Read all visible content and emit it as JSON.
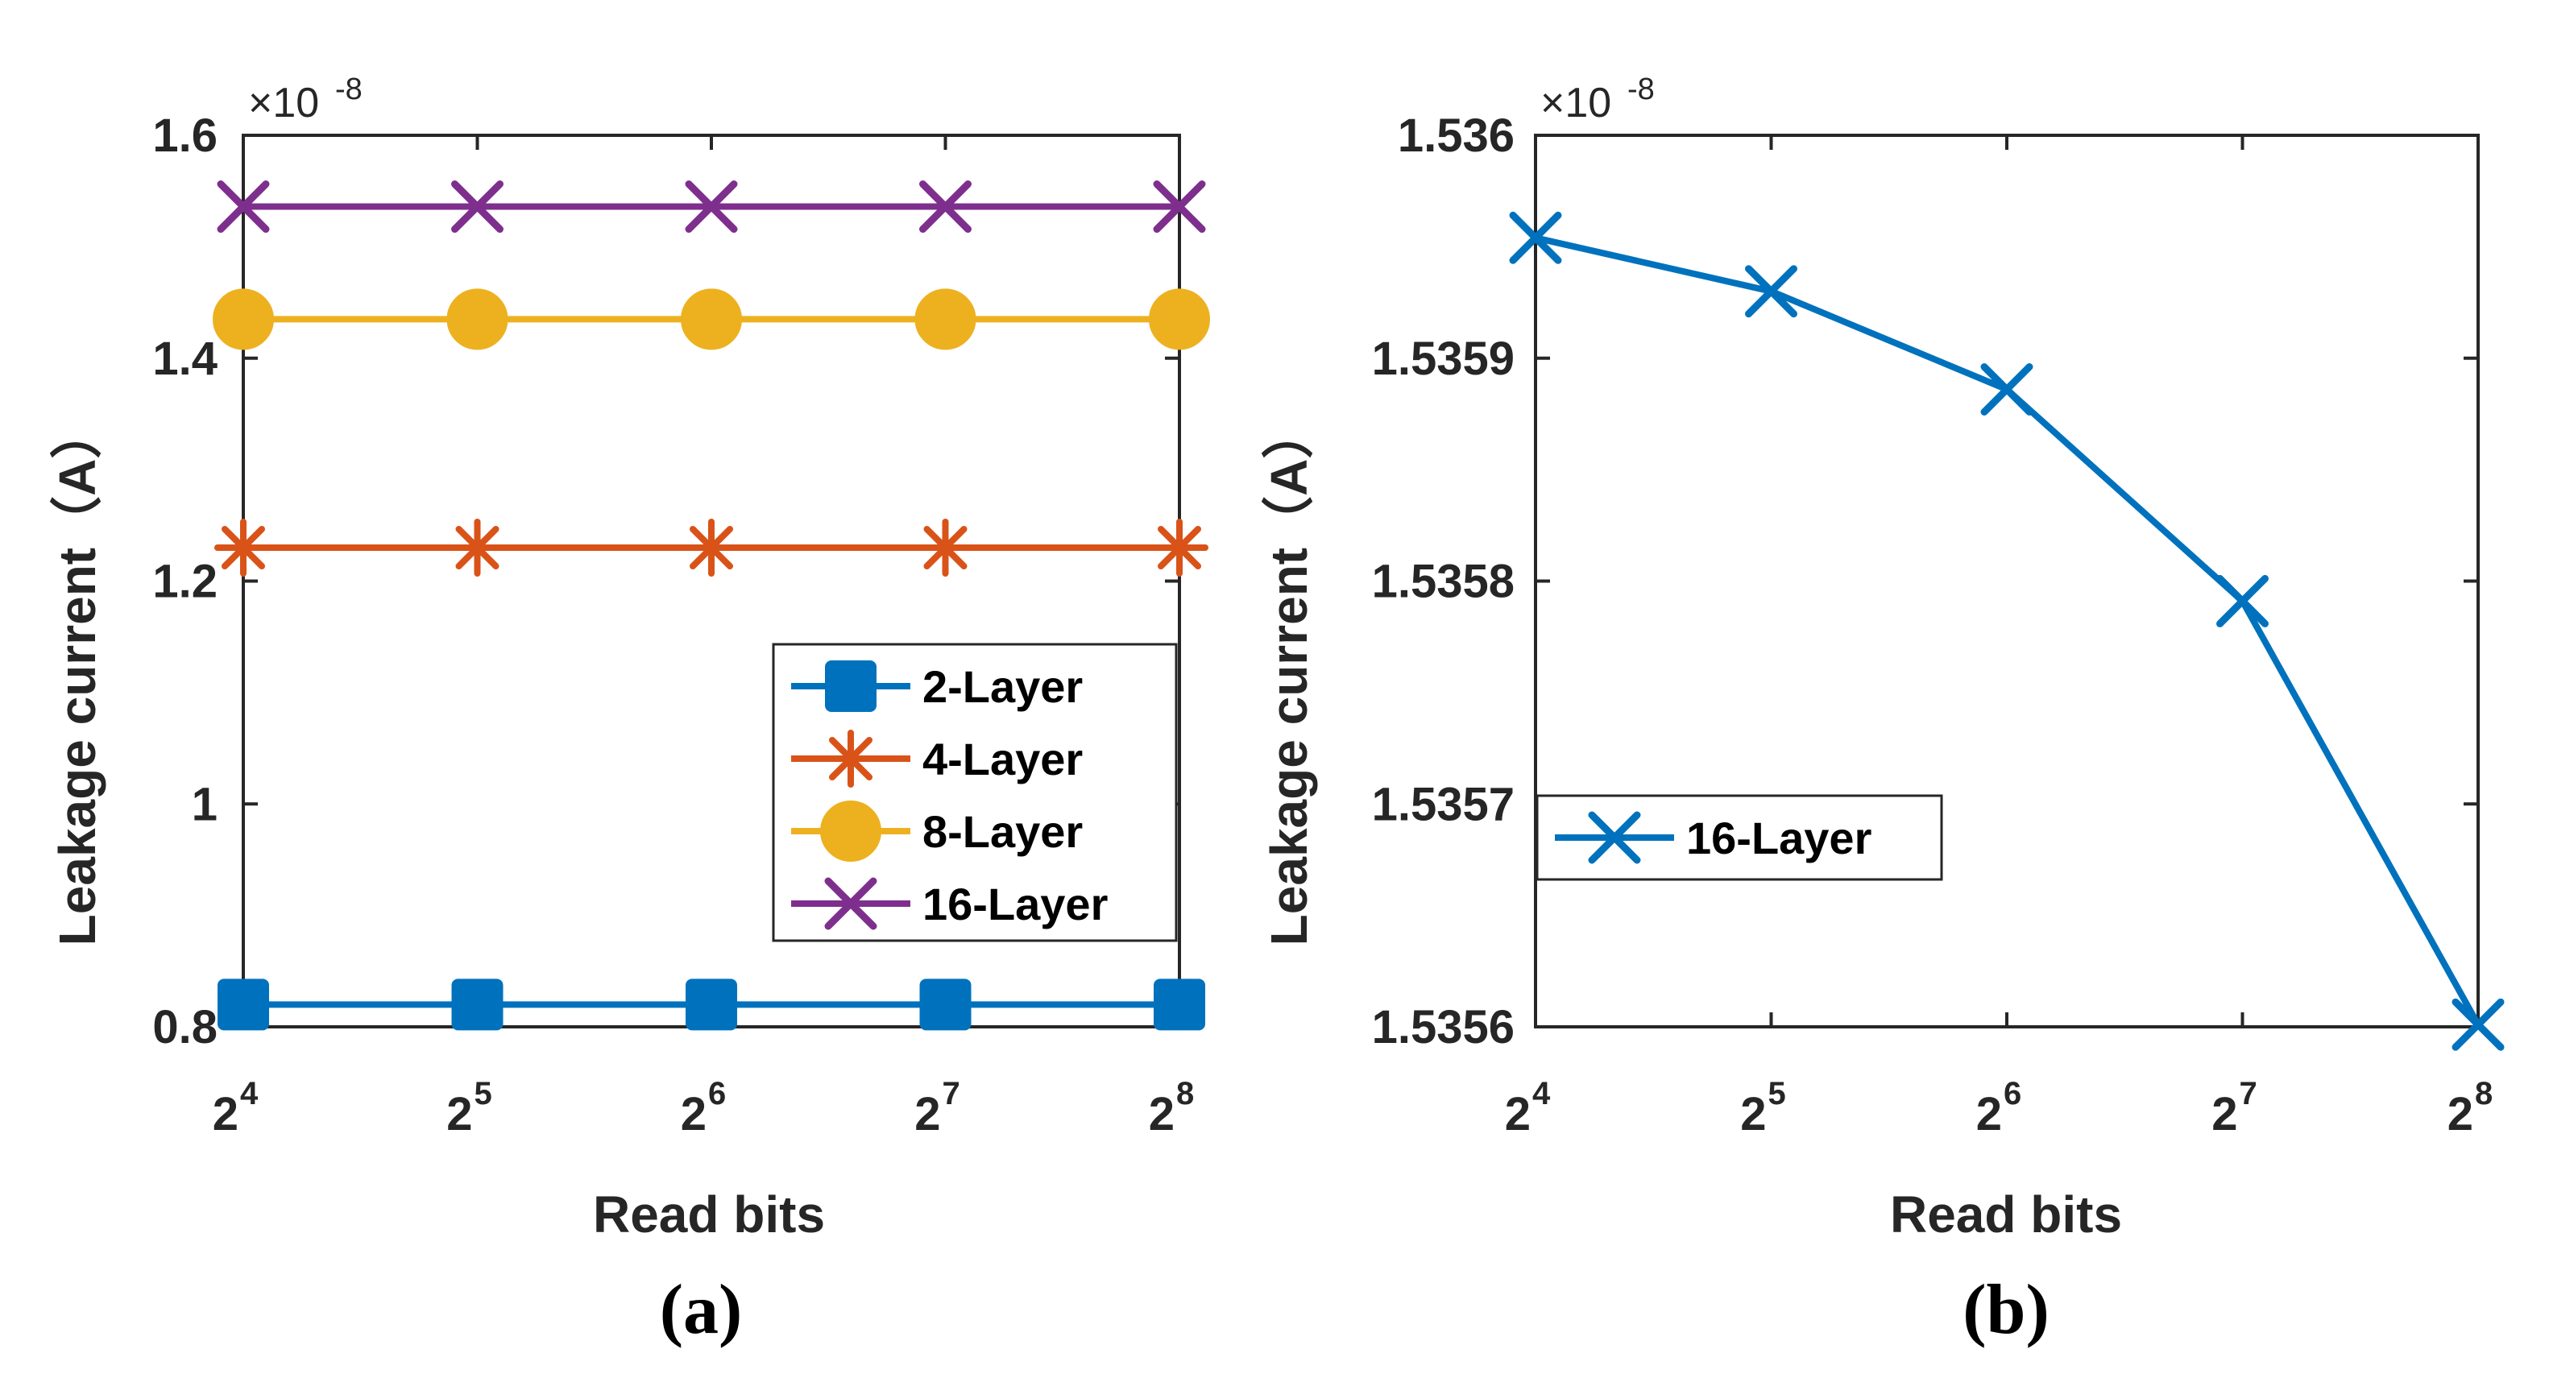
{
  "chart_data": [
    {
      "panel": "a",
      "caption": "(a)",
      "type": "line",
      "xlabel": "Read bits",
      "ylabel": "Leakage current（A）",
      "y_multiplier_base": "×10",
      "y_multiplier_exp": "-8",
      "x": [
        16,
        32,
        64,
        128,
        256
      ],
      "x_tick_base": "2",
      "x_tick_exponents": [
        "4",
        "5",
        "6",
        "7",
        "8"
      ],
      "ylim": [
        0.8,
        1.6
      ],
      "y_ticks": [
        0.8,
        1.0,
        1.2,
        1.4,
        1.6
      ],
      "y_tick_labels": [
        "0.8",
        "1",
        "1.2",
        "1.4",
        "1.6"
      ],
      "series": [
        {
          "name": "2-Layer",
          "color": "#0072BD",
          "marker": "square",
          "values": [
            0.82,
            0.82,
            0.82,
            0.82,
            0.82
          ]
        },
        {
          "name": "4-Layer",
          "color": "#D95319",
          "marker": "asterisk",
          "values": [
            1.23,
            1.23,
            1.23,
            1.23,
            1.23
          ]
        },
        {
          "name": "8-Layer",
          "color": "#EDB120",
          "marker": "circle",
          "values": [
            1.435,
            1.435,
            1.435,
            1.435,
            1.435
          ]
        },
        {
          "name": "16-Layer",
          "color": "#7E2F8E",
          "marker": "x",
          "values": [
            1.536,
            1.536,
            1.536,
            1.536,
            1.536
          ]
        }
      ],
      "legend_location": "lower-right"
    },
    {
      "panel": "b",
      "caption": "(b)",
      "type": "line",
      "xlabel": "Read bits",
      "ylabel": "Leakage current（A）",
      "y_multiplier_base": "×10",
      "y_multiplier_exp": "-8",
      "x": [
        16,
        32,
        64,
        128,
        256
      ],
      "x_tick_base": "2",
      "x_tick_exponents": [
        "4",
        "5",
        "6",
        "7",
        "8"
      ],
      "ylim": [
        1.5356,
        1.536
      ],
      "y_ticks": [
        1.5356,
        1.5357,
        1.5358,
        1.5359,
        1.536
      ],
      "y_tick_labels": [
        "1.5356",
        "1.5357",
        "1.5358",
        "1.5359",
        "1.536"
      ],
      "series": [
        {
          "name": "16-Layer",
          "color": "#0072BD",
          "marker": "x",
          "values": [
            1.535954,
            1.53593,
            1.535886,
            1.535791,
            1.535601
          ]
        }
      ],
      "legend_location": "middle-left"
    }
  ]
}
